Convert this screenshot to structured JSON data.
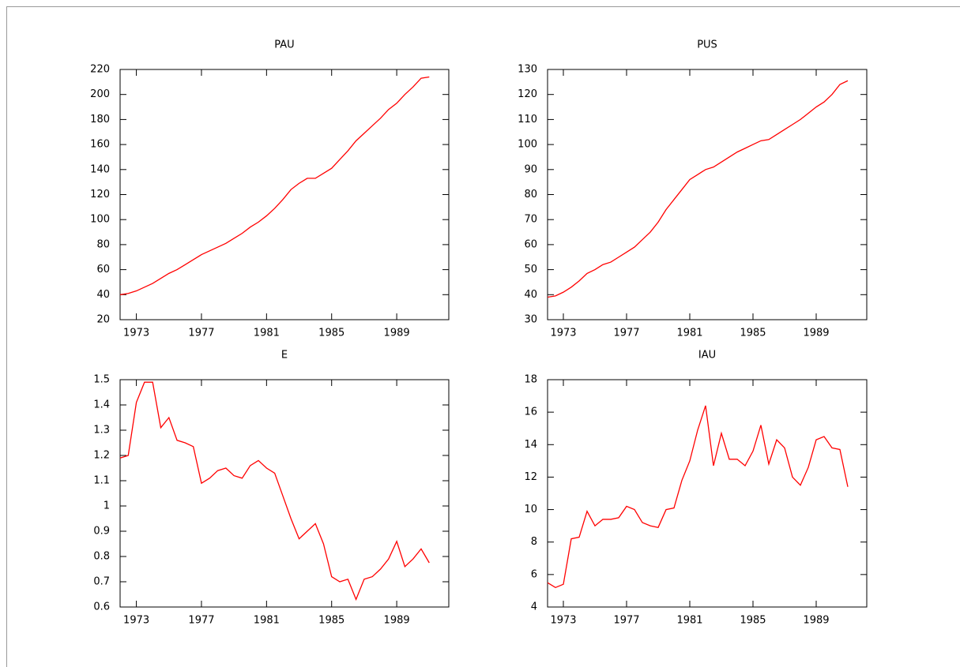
{
  "chart_data": [
    {
      "type": "line",
      "title": "PAU",
      "x": [
        1972,
        1972.5,
        1973,
        1973.5,
        1974,
        1974.5,
        1975,
        1975.5,
        1976,
        1976.5,
        1977,
        1977.5,
        1978,
        1978.5,
        1979,
        1979.5,
        1980,
        1980.5,
        1981,
        1981.5,
        1982,
        1982.5,
        1983,
        1983.5,
        1984,
        1984.5,
        1985,
        1985.5,
        1986,
        1986.5,
        1987,
        1987.5,
        1988,
        1988.5,
        1989,
        1989.5,
        1990,
        1990.5,
        1991
      ],
      "values": [
        40,
        41,
        43,
        46,
        49,
        53,
        57,
        60,
        64,
        68,
        72,
        75,
        78,
        81,
        85,
        89,
        94,
        98,
        103,
        109,
        116,
        124,
        129,
        133,
        133,
        137,
        141,
        148,
        155,
        163,
        169,
        175,
        181,
        188,
        193,
        200,
        206,
        213,
        214
      ],
      "color": "#ff0000",
      "xlim": [
        1972,
        1992.2
      ],
      "xticks": [
        1973,
        1977,
        1981,
        1985,
        1989
      ],
      "ylim": [
        20,
        220
      ],
      "yticks": [
        20,
        40,
        60,
        80,
        100,
        120,
        140,
        160,
        180,
        200,
        220
      ]
    },
    {
      "type": "line",
      "title": "PUS",
      "x": [
        1972,
        1972.5,
        1973,
        1973.5,
        1974,
        1974.5,
        1975,
        1975.5,
        1976,
        1976.5,
        1977,
        1977.5,
        1978,
        1978.5,
        1979,
        1979.5,
        1980,
        1980.5,
        1981,
        1981.5,
        1982,
        1982.5,
        1983,
        1983.5,
        1984,
        1984.5,
        1985,
        1985.5,
        1986,
        1986.5,
        1987,
        1987.5,
        1988,
        1988.5,
        1989,
        1989.5,
        1990,
        1990.5,
        1991
      ],
      "values": [
        39,
        39.5,
        41,
        43,
        45.5,
        48.5,
        50,
        52,
        53,
        55,
        57,
        59,
        62,
        65,
        69,
        74,
        78,
        82,
        86,
        88,
        90,
        91,
        93,
        95,
        97,
        98.5,
        100,
        101.5,
        102,
        104,
        106,
        108,
        110,
        112.5,
        115,
        117,
        120,
        124,
        125.5
      ],
      "color": "#ff0000",
      "xlim": [
        1972,
        1992.2
      ],
      "xticks": [
        1973,
        1977,
        1981,
        1985,
        1989
      ],
      "ylim": [
        30,
        130
      ],
      "yticks": [
        30,
        40,
        50,
        60,
        70,
        80,
        90,
        100,
        110,
        120,
        130
      ]
    },
    {
      "type": "line",
      "title": "E",
      "x": [
        1972,
        1972.5,
        1973,
        1973.5,
        1974,
        1974.5,
        1975,
        1975.5,
        1976,
        1976.5,
        1977,
        1977.5,
        1978,
        1978.5,
        1979,
        1979.5,
        1980,
        1980.5,
        1981,
        1981.5,
        1982,
        1982.5,
        1983,
        1983.5,
        1984,
        1984.5,
        1985,
        1985.5,
        1986,
        1986.5,
        1987,
        1987.5,
        1988,
        1988.5,
        1989,
        1989.5,
        1990,
        1990.5,
        1991
      ],
      "values": [
        1.19,
        1.2,
        1.41,
        1.49,
        1.49,
        1.31,
        1.35,
        1.26,
        1.25,
        1.235,
        1.09,
        1.11,
        1.14,
        1.15,
        1.12,
        1.11,
        1.16,
        1.18,
        1.15,
        1.13,
        1.04,
        0.95,
        0.87,
        0.9,
        0.93,
        0.85,
        0.72,
        0.7,
        0.71,
        0.63,
        0.71,
        0.72,
        0.75,
        0.79,
        0.86,
        0.76,
        0.79,
        0.83,
        0.775
      ],
      "color": "#ff0000",
      "xlim": [
        1972,
        1992.2
      ],
      "xticks": [
        1973,
        1977,
        1981,
        1985,
        1989
      ],
      "ylim": [
        0.6,
        1.5
      ],
      "yticks": [
        0.6,
        0.7,
        0.8,
        0.9,
        1,
        1.1,
        1.2,
        1.3,
        1.4,
        1.5
      ]
    },
    {
      "type": "line",
      "title": "IAU",
      "x": [
        1972,
        1972.5,
        1973,
        1973.5,
        1974,
        1974.5,
        1975,
        1975.5,
        1976,
        1976.5,
        1977,
        1977.5,
        1978,
        1978.5,
        1979,
        1979.5,
        1980,
        1980.5,
        1981,
        1981.5,
        1982,
        1982.5,
        1983,
        1983.5,
        1984,
        1984.5,
        1985,
        1985.5,
        1986,
        1986.5,
        1987,
        1987.5,
        1988,
        1988.5,
        1989,
        1989.5,
        1990,
        1990.5,
        1991
      ],
      "values": [
        5.5,
        5.2,
        5.4,
        8.2,
        8.3,
        9.9,
        9.0,
        9.4,
        9.4,
        9.5,
        10.2,
        10.0,
        9.2,
        9.0,
        8.9,
        10.0,
        10.1,
        11.8,
        13.0,
        14.9,
        16.4,
        12.7,
        14.7,
        13.1,
        13.1,
        12.7,
        13.6,
        15.2,
        12.8,
        14.3,
        13.8,
        12.0,
        11.5,
        12.6,
        14.3,
        14.5,
        13.8,
        13.7,
        11.4
      ],
      "color": "#ff0000",
      "xlim": [
        1972,
        1992.2
      ],
      "xticks": [
        1973,
        1977,
        1981,
        1985,
        1989
      ],
      "ylim": [
        4,
        18
      ],
      "yticks": [
        4,
        6,
        8,
        10,
        12,
        14,
        16,
        18
      ]
    }
  ]
}
